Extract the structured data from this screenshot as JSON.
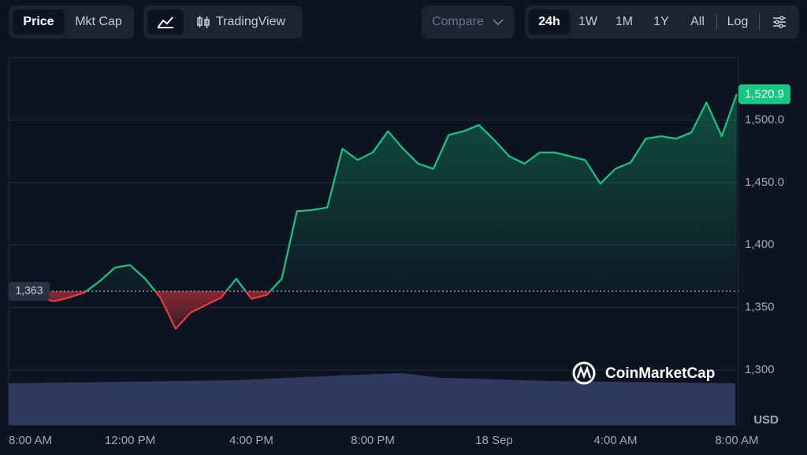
{
  "toolbar": {
    "price": "Price",
    "mkt_cap": "Mkt Cap",
    "trading_view": "TradingView",
    "compare": "Compare",
    "ranges": [
      "24h",
      "1W",
      "1M",
      "1Y",
      "All"
    ],
    "log": "Log"
  },
  "watermark": "CoinMarketCap",
  "chart_data": {
    "type": "line",
    "x": [
      0,
      0.5,
      1,
      1.5,
      2,
      2.5,
      3,
      3.5,
      4,
      4.5,
      5,
      5.5,
      6,
      6.5,
      7,
      7.5,
      8,
      8.5,
      9,
      9.5,
      10,
      10.5,
      11,
      11.5,
      12,
      12.5,
      13,
      13.5,
      14,
      14.5,
      15,
      15.5,
      16,
      16.5,
      17,
      17.5,
      18,
      18.5,
      19,
      19.5,
      20,
      20.5,
      21,
      21.5,
      22,
      22.5,
      23,
      23.5,
      24
    ],
    "values": [
      1363,
      1357,
      1358,
      1355,
      1358,
      1362,
      1371,
      1382,
      1384,
      1373,
      1358,
      1333,
      1346,
      1352,
      1358,
      1373,
      1357,
      1360,
      1373,
      1427,
      1428,
      1430,
      1477,
      1468,
      1474,
      1491,
      1477,
      1465,
      1461,
      1488,
      1491,
      1496,
      1484,
      1471,
      1465,
      1474,
      1474,
      1471,
      1468,
      1449,
      1461,
      1466,
      1485,
      1487,
      1485,
      1490,
      1514,
      1487,
      1520.9
    ],
    "color": "#16c784",
    "down_color": "#ea3943",
    "price_label": "1,520.9",
    "baseline": {
      "value": 1363,
      "label": "1,363"
    },
    "xlim": [
      0,
      24
    ],
    "xticks": [
      {
        "value": 0,
        "label": "8:00 AM"
      },
      {
        "value": 4,
        "label": "12:00 PM"
      },
      {
        "value": 8,
        "label": "4:00 PM"
      },
      {
        "value": 12,
        "label": "8:00 PM"
      },
      {
        "value": 16,
        "label": "18 Sep"
      },
      {
        "value": 20,
        "label": "4:00 AM"
      },
      {
        "value": 24,
        "label": "8:00 AM"
      }
    ],
    "ylim": [
      1256,
      1550
    ],
    "yticks": [
      {
        "value": 1300,
        "label": "1,300"
      },
      {
        "value": 1350,
        "label": "1,350"
      },
      {
        "value": 1400,
        "label": "1,400"
      },
      {
        "value": 1450,
        "label": "1,450.0"
      },
      {
        "value": 1500,
        "label": "1,500.0"
      }
    ],
    "y_unit": "USD",
    "grid": true
  }
}
